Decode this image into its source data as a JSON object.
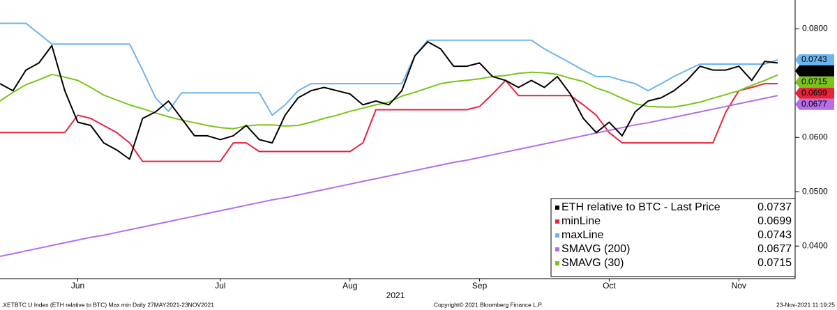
{
  "chart_data": {
    "type": "line",
    "xlabel": "2021",
    "footer_left": ".XETBTC U Index (ETH relative to BTC) Max min  Daily 27MAY2021-23NOV2021",
    "footer_center": "Copyright© 2021 Bloomberg Finance L.P.",
    "footer_right": "23-Nov-2021 11:19:25",
    "categories": [
      null,
      null,
      null,
      null,
      null,
      null,
      "Jun",
      null,
      null,
      null,
      null,
      null,
      null,
      null,
      null,
      null,
      null,
      "Jul",
      null,
      null,
      null,
      null,
      null,
      null,
      null,
      null,
      null,
      "Aug",
      null,
      null,
      null,
      null,
      null,
      null,
      null,
      null,
      null,
      "Sep",
      null,
      null,
      null,
      null,
      null,
      null,
      null,
      null,
      null,
      "Oct",
      null,
      null,
      null,
      null,
      null,
      null,
      null,
      null,
      null,
      "Nov",
      null,
      null,
      null
    ],
    "ylim": [
      0.034,
      0.0853
    ],
    "yticks": [
      {
        "value": 0.04,
        "label": "0.0400"
      },
      {
        "value": 0.05,
        "label": "0.0500"
      },
      {
        "value": 0.06,
        "label": "0.0600"
      },
      {
        "value": 0.07,
        "label": "0.0700"
      },
      {
        "value": 0.08,
        "label": "0.0800"
      }
    ],
    "grid": false,
    "legend": "lower right",
    "series": [
      {
        "name": "ETH relative to BTC - Last Price",
        "color": "#000000",
        "values": [
          0.0699,
          0.0686,
          0.0724,
          0.0737,
          0.0769,
          0.0686,
          0.0628,
          0.0622,
          0.059,
          0.0577,
          0.056,
          0.0635,
          0.0647,
          0.0667,
          0.0635,
          0.0603,
          0.0603,
          0.0596,
          0.0603,
          0.0622,
          0.0596,
          0.059,
          0.0641,
          0.0673,
          0.0686,
          0.0692,
          0.0686,
          0.068,
          0.066,
          0.0667,
          0.066,
          0.0686,
          0.075,
          0.0776,
          0.0763,
          0.0731,
          0.0731,
          0.0737,
          0.0712,
          0.0705,
          0.0692,
          0.0705,
          0.0692,
          0.0712,
          0.068,
          0.0635,
          0.0609,
          0.0628,
          0.0603,
          0.0647,
          0.0667,
          0.0673,
          0.0686,
          0.0705,
          0.0731,
          0.0724,
          0.0724,
          0.0731,
          0.0705,
          0.074,
          0.0737
        ]
      },
      {
        "name": "minLine",
        "color": "#e8223a",
        "values": [
          0.0609,
          0.0609,
          0.0609,
          0.0609,
          0.0609,
          0.0609,
          0.0641,
          0.0635,
          0.0622,
          0.0609,
          0.059,
          0.0556,
          0.0556,
          0.0556,
          0.0556,
          0.0556,
          0.0556,
          0.0556,
          0.059,
          0.059,
          0.0574,
          0.0574,
          0.0574,
          0.0574,
          0.0574,
          0.0574,
          0.0574,
          0.0574,
          0.059,
          0.0651,
          0.0651,
          0.0651,
          0.0651,
          0.0651,
          0.0651,
          0.0651,
          0.0651,
          0.0657,
          0.068,
          0.0705,
          0.0677,
          0.0677,
          0.0677,
          0.0677,
          0.0677,
          0.066,
          0.0641,
          0.0609,
          0.059,
          0.059,
          0.059,
          0.059,
          0.059,
          0.059,
          0.059,
          0.059,
          0.0647,
          0.0686,
          0.0692,
          0.0699,
          0.0699
        ]
      },
      {
        "name": "maxLine",
        "color": "#6cb4ee",
        "values": [
          0.081,
          0.081,
          0.081,
          0.0791,
          0.0772,
          0.0772,
          0.0772,
          0.0772,
          0.0772,
          0.0772,
          0.0772,
          0.0724,
          0.0673,
          0.0648,
          0.0682,
          0.0682,
          0.0682,
          0.0682,
          0.0682,
          0.0682,
          0.0682,
          0.0641,
          0.066,
          0.0686,
          0.0699,
          0.0699,
          0.0699,
          0.0699,
          0.0699,
          0.0699,
          0.0699,
          0.0699,
          0.075,
          0.0779,
          0.0779,
          0.0779,
          0.0779,
          0.0779,
          0.0779,
          0.0779,
          0.0779,
          0.0779,
          0.0763,
          0.075,
          0.0737,
          0.0724,
          0.0712,
          0.0712,
          0.0705,
          0.0699,
          0.0686,
          0.0699,
          0.0712,
          0.0724,
          0.0735,
          0.0735,
          0.0735,
          0.0735,
          0.0735,
          0.0735,
          0.0743
        ]
      },
      {
        "name": "SMAVG (200)",
        "color": "#b56ee8",
        "values": [
          0.0381,
          0.0386,
          0.0391,
          0.0396,
          0.0401,
          0.0406,
          0.0411,
          0.0416,
          0.042,
          0.0425,
          0.043,
          0.0435,
          0.044,
          0.0445,
          0.045,
          0.0455,
          0.046,
          0.0465,
          0.047,
          0.0475,
          0.048,
          0.0485,
          0.0489,
          0.0494,
          0.0499,
          0.0504,
          0.0509,
          0.0514,
          0.0519,
          0.0524,
          0.0529,
          0.0534,
          0.0539,
          0.0544,
          0.0549,
          0.0554,
          0.0558,
          0.0563,
          0.0568,
          0.0573,
          0.0578,
          0.0583,
          0.0588,
          0.0593,
          0.0598,
          0.0603,
          0.0608,
          0.0613,
          0.0618,
          0.0623,
          0.0627,
          0.0632,
          0.0637,
          0.0642,
          0.0647,
          0.0652,
          0.0657,
          0.0662,
          0.0667,
          0.0672,
          0.0677
        ]
      },
      {
        "name": "SMAVG (30)",
        "color": "#7ac41a",
        "values": [
          0.0667,
          0.0683,
          0.0697,
          0.0706,
          0.0716,
          0.0711,
          0.0705,
          0.0692,
          0.0678,
          0.0669,
          0.066,
          0.0653,
          0.0645,
          0.0638,
          0.0632,
          0.0627,
          0.0622,
          0.0618,
          0.0616,
          0.0621,
          0.0623,
          0.0623,
          0.0621,
          0.0622,
          0.0628,
          0.0635,
          0.0641,
          0.0648,
          0.0654,
          0.066,
          0.0665,
          0.0676,
          0.0683,
          0.0691,
          0.0699,
          0.0703,
          0.0705,
          0.0708,
          0.0712,
          0.0714,
          0.0718,
          0.072,
          0.0719,
          0.0716,
          0.0709,
          0.0703,
          0.0691,
          0.0683,
          0.0672,
          0.0662,
          0.0657,
          0.0656,
          0.0656,
          0.066,
          0.0665,
          0.0672,
          0.0679,
          0.0686,
          0.0696,
          0.0705,
          0.0715
        ]
      }
    ]
  }
}
